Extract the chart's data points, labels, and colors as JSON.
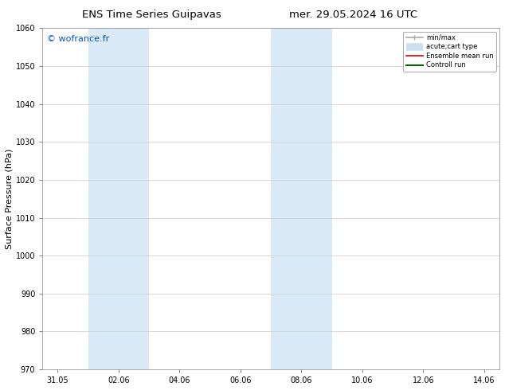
{
  "title_left": "ENS Time Series Guipavas",
  "title_right": "mer. 29.05.2024 16 UTC",
  "ylabel": "Surface Pressure (hPa)",
  "ylim": [
    970,
    1060
  ],
  "yticks": [
    970,
    980,
    990,
    1000,
    1010,
    1020,
    1030,
    1040,
    1050,
    1060
  ],
  "xtick_labels": [
    "31.05",
    "02.06",
    "04.06",
    "06.06",
    "08.06",
    "10.06",
    "12.06",
    "14.06"
  ],
  "xtick_positions": [
    0,
    2,
    4,
    6,
    8,
    10,
    12,
    14
  ],
  "xlim": [
    -0.5,
    14.5
  ],
  "shaded_bands": [
    {
      "xmin": 1.0,
      "xmax": 3.0
    },
    {
      "xmin": 7.0,
      "xmax": 9.0
    }
  ],
  "shaded_color": "#daeaf7",
  "watermark": "© wofrance.fr",
  "watermark_color": "#0055cc",
  "legend_items": [
    {
      "label": "min/max",
      "color": "#aaaaaa",
      "lw": 1.2,
      "style": "line_with_caps"
    },
    {
      "label": "acute;cart type",
      "color": "#cce0f0",
      "lw": 7,
      "style": "thick"
    },
    {
      "label": "Ensemble mean run",
      "color": "#dd0000",
      "lw": 1.2,
      "style": "line"
    },
    {
      "label": "Controll run",
      "color": "#006600",
      "lw": 1.5,
      "style": "line"
    }
  ],
  "bg_color": "#ffffff",
  "grid_color": "#cccccc",
  "title_fontsize": 9.5,
  "tick_fontsize": 7,
  "ylabel_fontsize": 8,
  "watermark_fontsize": 8
}
